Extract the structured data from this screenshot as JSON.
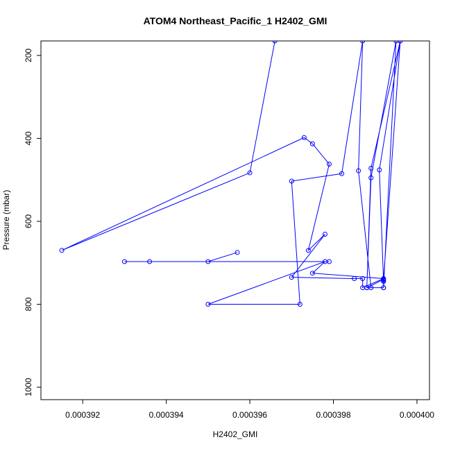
{
  "chart_data": {
    "type": "line",
    "title": "ATOM4 Northeast_Pacific_1 H2402_GMI",
    "xlabel": "H2402_GMI",
    "ylabel": "Pressure (mbar)",
    "xlim": [
      0.000391,
      0.0004003
    ],
    "ylim": [
      1030,
      165
    ],
    "y_reversed": true,
    "x_ticks": [
      0.000392,
      0.000394,
      0.000396,
      0.000398,
      0.0004
    ],
    "x_tick_labels": [
      "0.000392",
      "0.000394",
      "0.000396",
      "0.000398",
      "0.000400"
    ],
    "y_ticks": [
      200,
      400,
      600,
      800,
      1000
    ],
    "y_tick_labels": [
      "200",
      "400",
      "600",
      "800",
      "1000"
    ],
    "grid": false,
    "markers": "open-circle",
    "color": "#0000ff",
    "series": [
      {
        "x": [
          0.0003966,
          0.000396,
          0.0003915,
          0.0003973,
          0.0003975,
          0.0003979,
          0.0003974,
          0.0003978,
          0.000397,
          0.0003985,
          0.0003987,
          0.0003987,
          0.0003992,
          0.0003975,
          0.0003978,
          0.000395,
          0.0003972,
          0.000397,
          0.0003982,
          0.0003987,
          0.0003986,
          0.0003989,
          0.0003992,
          0.0003995,
          0.0003989,
          0.0003988,
          0.0003992,
          0.0003992,
          0.0003991,
          0.0003996,
          0.0003989,
          0.0003988,
          0.0003992,
          0.0003992,
          0.0003996
        ],
        "y": [
          165,
          483,
          670,
          398,
          413,
          462,
          670,
          631,
          735,
          738,
          738,
          760,
          738,
          725,
          697,
          800,
          800,
          503,
          485,
          165,
          478,
          760,
          760,
          165,
          495,
          760,
          760,
          745,
          476,
          165,
          472,
          760,
          740,
          742,
          165
        ]
      },
      {
        "x": [
          0.0003957,
          0.000395,
          0.000393,
          0.0003936,
          0.0003979
        ],
        "y": [
          675,
          697,
          697,
          697,
          697
        ]
      }
    ]
  }
}
